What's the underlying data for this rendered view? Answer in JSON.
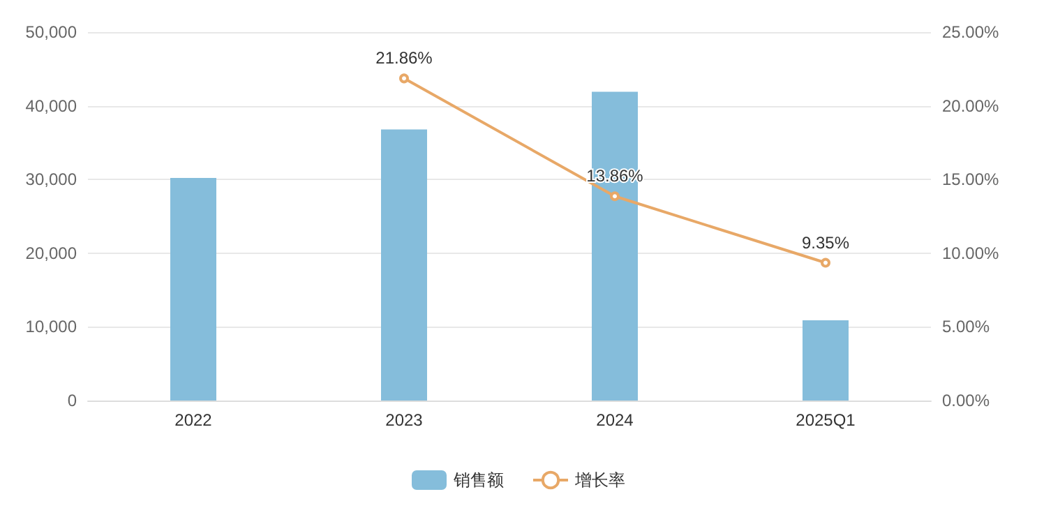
{
  "chart_data": {
    "type": "bar",
    "categories": [
      "2022",
      "2023",
      "2024",
      "2025Q1"
    ],
    "series": [
      {
        "name": "销售额",
        "color": "#85bddb",
        "values": [
          30200,
          36800,
          41900,
          10900
        ]
      },
      {
        "name": "增长率",
        "type": "line",
        "axis": "y2",
        "color": "#e8a867",
        "values": [
          null,
          21.86,
          13.86,
          9.35
        ],
        "value_labels": [
          null,
          "21.86%",
          "13.86%",
          "9.35%"
        ]
      }
    ],
    "ylim": [
      0,
      50000
    ],
    "yticks": [
      0,
      {
        "value": 10000,
        "label": "10,000"
      },
      {
        "value": 20000,
        "label": "20,000"
      },
      {
        "value": 30000,
        "label": "30,000"
      },
      {
        "value": 40000,
        "label": "40,000"
      },
      {
        "value": 50000,
        "label": "50,000"
      }
    ],
    "y2lim": [
      0,
      25
    ],
    "y2ticks": [
      {
        "value": 0,
        "label": "0.00%"
      },
      {
        "value": 5,
        "label": "5.00%"
      },
      {
        "value": 10,
        "label": "10.00%"
      },
      {
        "value": 15,
        "label": "15.00%"
      },
      {
        "value": 20,
        "label": "20.00%"
      },
      {
        "value": 25,
        "label": "25.00%"
      }
    ],
    "grid": "y",
    "legend": "bottom",
    "marker": "circle"
  }
}
